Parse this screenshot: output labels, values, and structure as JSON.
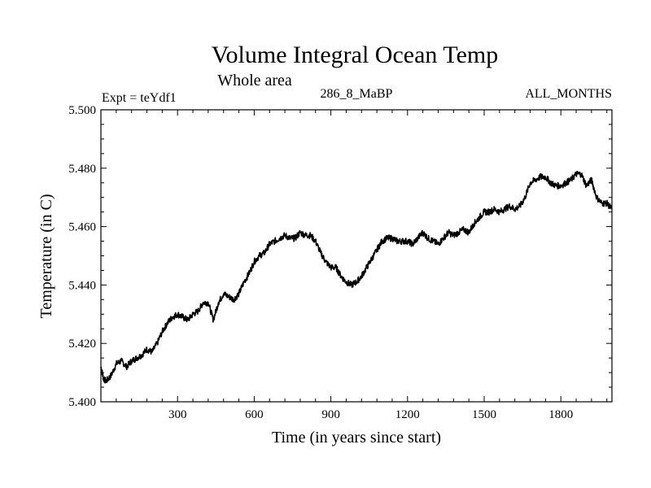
{
  "chart_data": {
    "type": "line",
    "title": "Volume Integral Ocean Temp",
    "subtitle": "Whole area",
    "annotations": {
      "experiment": "Expt = teYdf1",
      "run": "286_8_MaBP",
      "months": "ALL_MONTHS"
    },
    "xlabel": "Time (in years since start)",
    "ylabel": "Temperature (in C)",
    "xlim": [
      0,
      2000
    ],
    "ylim": [
      5.4,
      5.5
    ],
    "x_ticks": [
      300,
      600,
      900,
      1200,
      1500,
      1800
    ],
    "x_tick_labels": [
      "300",
      "600",
      "900",
      "1200",
      "1500",
      "1800"
    ],
    "y_ticks": [
      5.4,
      5.42,
      5.44,
      5.46,
      5.48,
      5.5
    ],
    "y_tick_labels": [
      "5.400",
      "5.420",
      "5.440",
      "5.460",
      "5.480",
      "5.500"
    ],
    "grid": false,
    "series": [
      {
        "name": "Volume integral ocean temperature",
        "color": "#000000",
        "x": [
          0,
          10,
          20,
          40,
          60,
          80,
          100,
          120,
          140,
          160,
          180,
          200,
          220,
          240,
          260,
          280,
          300,
          320,
          340,
          360,
          380,
          400,
          420,
          440,
          460,
          480,
          500,
          520,
          540,
          560,
          580,
          600,
          620,
          640,
          660,
          680,
          700,
          720,
          740,
          760,
          780,
          800,
          820,
          840,
          860,
          880,
          900,
          920,
          940,
          960,
          980,
          1000,
          1020,
          1040,
          1060,
          1080,
          1100,
          1120,
          1140,
          1160,
          1180,
          1200,
          1220,
          1240,
          1260,
          1280,
          1300,
          1320,
          1340,
          1360,
          1380,
          1400,
          1420,
          1440,
          1460,
          1480,
          1500,
          1520,
          1540,
          1560,
          1580,
          1600,
          1620,
          1640,
          1660,
          1680,
          1700,
          1720,
          1740,
          1760,
          1780,
          1800,
          1820,
          1840,
          1860,
          1880,
          1900,
          1920,
          1940,
          1960,
          1980,
          2000
        ],
        "values": [
          5.412,
          5.408,
          5.407,
          5.409,
          5.413,
          5.414,
          5.412,
          5.414,
          5.415,
          5.416,
          5.418,
          5.417,
          5.42,
          5.424,
          5.427,
          5.429,
          5.43,
          5.429,
          5.428,
          5.43,
          5.431,
          5.434,
          5.434,
          5.428,
          5.434,
          5.437,
          5.436,
          5.435,
          5.437,
          5.441,
          5.444,
          5.448,
          5.45,
          5.451,
          5.454,
          5.455,
          5.456,
          5.457,
          5.456,
          5.456,
          5.458,
          5.457,
          5.457,
          5.455,
          5.451,
          5.448,
          5.446,
          5.446,
          5.443,
          5.441,
          5.44,
          5.441,
          5.443,
          5.446,
          5.449,
          5.452,
          5.455,
          5.456,
          5.456,
          5.455,
          5.455,
          5.455,
          5.454,
          5.456,
          5.458,
          5.456,
          5.455,
          5.454,
          5.456,
          5.458,
          5.457,
          5.458,
          5.459,
          5.458,
          5.461,
          5.463,
          5.465,
          5.465,
          5.466,
          5.465,
          5.466,
          5.467,
          5.466,
          5.467,
          5.47,
          5.475,
          5.476,
          5.477,
          5.477,
          5.475,
          5.474,
          5.474,
          5.475,
          5.476,
          5.478,
          5.478,
          5.474,
          5.476,
          5.47,
          5.468,
          5.468,
          5.466
        ]
      }
    ]
  }
}
